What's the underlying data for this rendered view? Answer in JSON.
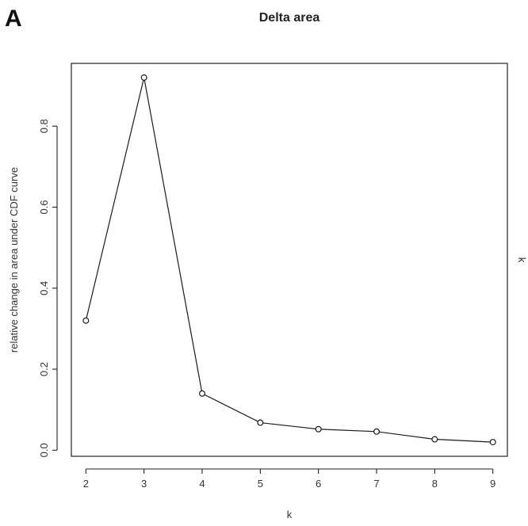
{
  "panel_label": "A",
  "chart_data": {
    "type": "line",
    "title": "Delta area",
    "xlabel": "k",
    "ylabel": "relative change in area under CDF curve",
    "right_label": "k",
    "x": [
      2,
      3,
      4,
      5,
      6,
      7,
      8,
      9
    ],
    "series": [
      {
        "values": [
          0.32,
          0.92,
          0.14,
          0.068,
          0.052,
          0.046,
          0.027,
          0.02
        ]
      }
    ],
    "xticks": [
      "2",
      "3",
      "4",
      "5",
      "6",
      "7",
      "8",
      "9"
    ],
    "yticks": [
      "0.0",
      "0.2",
      "0.4",
      "0.6",
      "0.8"
    ],
    "xlim": [
      1.75,
      9.25
    ],
    "ylim": [
      -0.015,
      0.955
    ],
    "grid": false,
    "marker": "open-circle"
  }
}
